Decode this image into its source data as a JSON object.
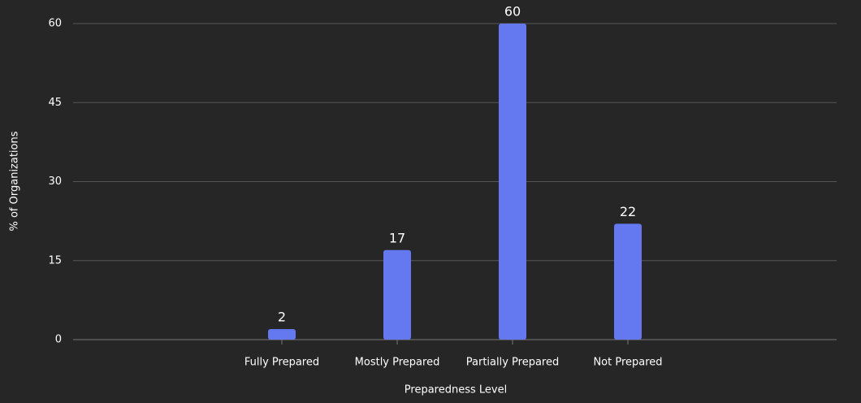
{
  "chart_data": {
    "type": "bar",
    "x_label": "Preparedness Level",
    "y_label": "% of Organizations",
    "categories": [
      "Fully Prepared",
      "Mostly Prepared",
      "Partially Prepared",
      "Not Prepared"
    ],
    "values": [
      2,
      17,
      60,
      22
    ],
    "color": "#6479f0",
    "ylim": [
      0,
      60
    ],
    "yticks": [
      0,
      15,
      30,
      45,
      60
    ],
    "grid": true
  }
}
